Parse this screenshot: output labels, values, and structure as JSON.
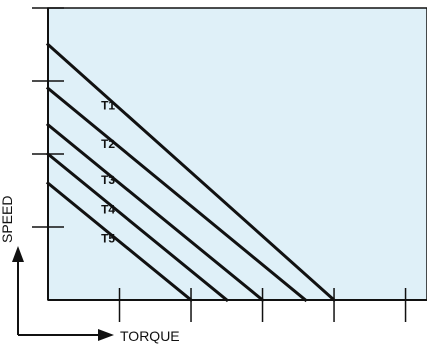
{
  "chart_data": {
    "type": "line",
    "title": "",
    "xlabel": "TORQUE",
    "ylabel": "SPEED",
    "xlim": [
      0,
      5.3
    ],
    "ylim": [
      0,
      4.0
    ],
    "x_ticks": [
      1,
      2,
      3,
      4,
      5
    ],
    "y_ticks": [
      1,
      2,
      3,
      4
    ],
    "tick_labels_shown": false,
    "grid": false,
    "legend": "none",
    "plot_background": "#dff0f8",
    "line_color": "#111111",
    "series": [
      {
        "name": "T1",
        "x": [
          0,
          4.0
        ],
        "y": [
          3.5,
          0
        ]
      },
      {
        "name": "T2",
        "x": [
          0,
          3.6
        ],
        "y": [
          2.9,
          0
        ]
      },
      {
        "name": "T3",
        "x": [
          0,
          3.0
        ],
        "y": [
          2.4,
          0
        ]
      },
      {
        "name": "T4",
        "x": [
          0,
          2.5
        ],
        "y": [
          2.0,
          0
        ]
      },
      {
        "name": "T5",
        "x": [
          0,
          2.0
        ],
        "y": [
          1.6,
          0
        ]
      }
    ]
  }
}
